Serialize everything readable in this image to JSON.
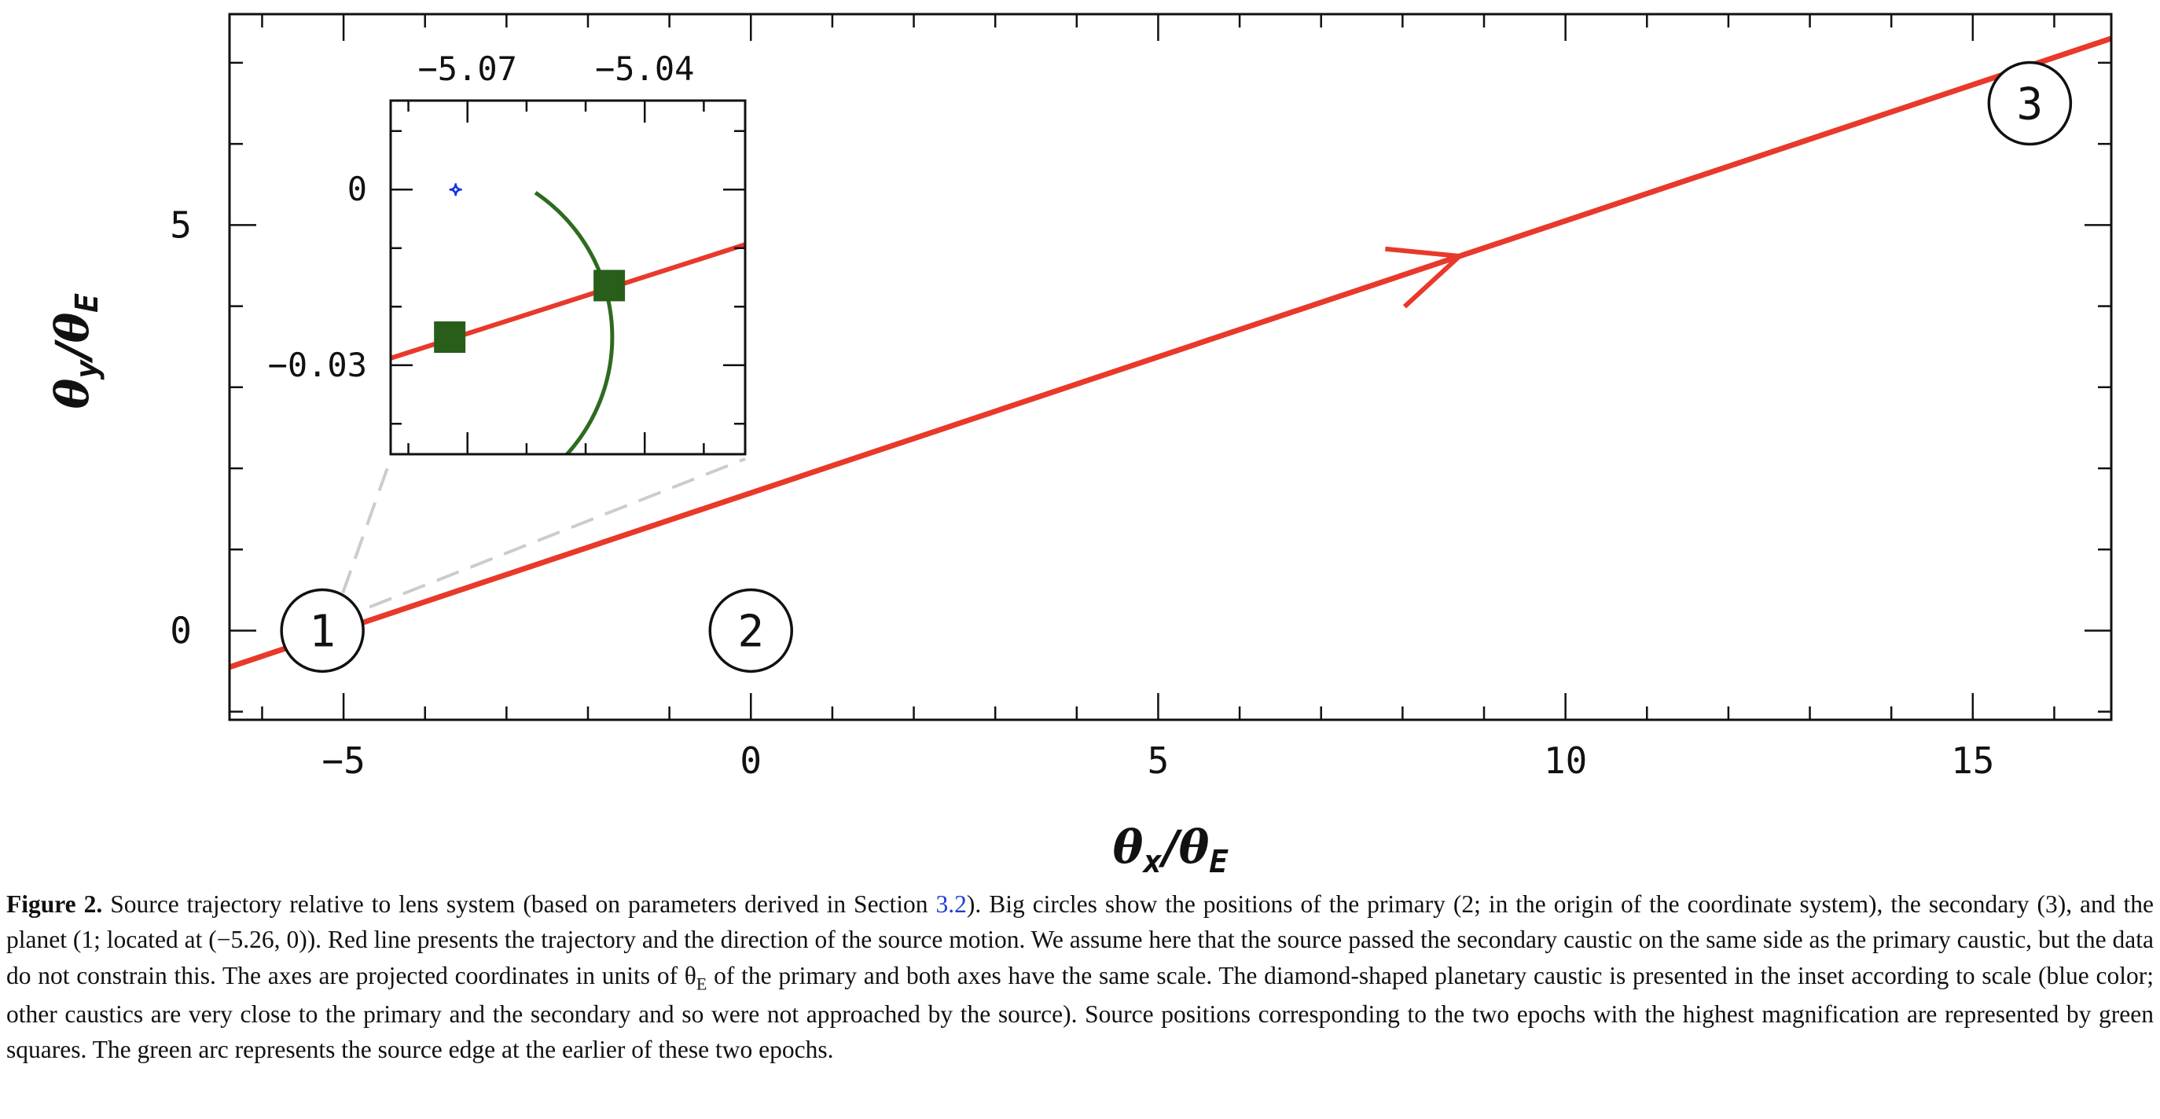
{
  "chart_data": [
    {
      "type": "line",
      "xlabel": {
        "symbol": "θ",
        "sub": "x",
        "slash": "/",
        "denom": "θ",
        "denom_sub": "E"
      },
      "ylabel": {
        "symbol": "θ",
        "sub": "y",
        "slash": "/",
        "denom": "θ",
        "denom_sub": "E"
      },
      "xlim": [
        -6.4,
        16.7
      ],
      "ylim": [
        -1.1,
        7.6
      ],
      "x_major_ticks": [
        -5,
        0,
        5,
        10,
        15
      ],
      "x_tick_labels": [
        "−5",
        "0",
        "5",
        "10",
        "15"
      ],
      "y_major_ticks": [
        0,
        5
      ],
      "y_tick_labels": [
        "0",
        "5"
      ],
      "x_minor_step": 1,
      "y_minor_step": 1,
      "grid": false,
      "series": [
        {
          "type": "line",
          "color": "#e8392a",
          "x": [
            -6.4,
            16.7
          ],
          "y": [
            -0.45,
            7.3
          ],
          "arrow_at_x": 8.7
        }
      ],
      "markers": [
        {
          "label": "1",
          "x": -5.26,
          "y": 0
        },
        {
          "label": "2",
          "x": 0,
          "y": 0
        },
        {
          "label": "3",
          "x": 15.7,
          "y": 6.5
        }
      ],
      "zoom_lines_color": "#cccccc"
    },
    {
      "type": "scatter",
      "inset": true,
      "xlim": [
        -5.083,
        -5.023
      ],
      "ylim": [
        -0.0452,
        0.0152
      ],
      "x_tick_labels": [
        "−5.07",
        "−5.04"
      ],
      "x_major_ticks": [
        -5.07,
        -5.04
      ],
      "y_tick_labels": [
        "0",
        "−0.03"
      ],
      "y_major_ticks": [
        0,
        -0.03
      ],
      "x_minor_step": 0.01,
      "y_minor_step": 0.01,
      "trajectory": {
        "color": "#e8392a",
        "x": [
          -5.083,
          -5.023
        ],
        "y": [
          -0.0288,
          -0.0094
        ]
      },
      "squares": {
        "color": "#285e1a",
        "x": [
          -5.073,
          -5.046
        ],
        "y": [
          -0.0252,
          -0.0164
        ]
      },
      "caustic": {
        "color": "#1432e0",
        "x": -5.072,
        "y": 0.0
      },
      "source_edge_arc": {
        "color": "#2d6b1f",
        "center_x": -5.075,
        "center_y": -0.0252,
        "radius": 0.0295,
        "angle_start_deg": 36,
        "angle_end_deg": -43
      }
    }
  ],
  "caption": {
    "label": "Figure 2.",
    "text_before_link": " Source trajectory relative to lens system (based on parameters derived in Section ",
    "link": "3.2",
    "text_after_link": "). Big circles show the positions of the primary (2; in the origin of the coordinate system), the secondary (3), and the planet (1; located at (−5.26, 0)). Red line presents the trajectory and the direction of the source motion. We assume here that the source passed the secondary caustic on the same side as the primary caustic, but the data do not constrain this. The axes are projected coordinates in units of θ",
    "theta_sub": "E",
    "text_end": " of the primary and both axes have the same scale. The diamond-shaped planetary caustic is presented in the inset according to scale (blue color; other caustics are very close to the primary and the secondary and so were not approached by the source). Source positions corresponding to the two epochs with the highest magnification are represented by green squares. The green arc represents the source edge at the earlier of these two epochs."
  }
}
